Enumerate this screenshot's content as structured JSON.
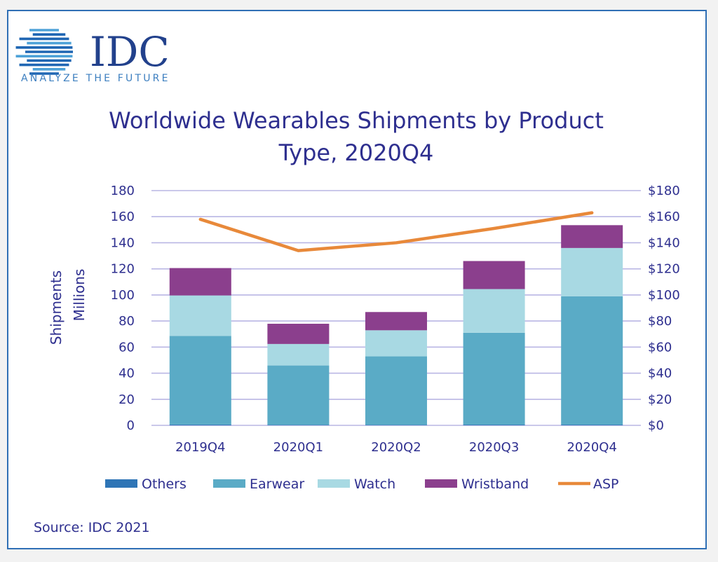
{
  "logo": {
    "name": "IDC",
    "tagline": "ANALYZE THE FUTURE"
  },
  "source": "Source: IDC 2021",
  "chart_data": {
    "type": "bar",
    "stacked": true,
    "title": [
      "Worldwide Wearables Shipments by Product",
      "Type, 2020Q4"
    ],
    "ylabel": [
      "Shipments",
      "Millions"
    ],
    "categories": [
      "2019Q4",
      "2020Q1",
      "2020Q2",
      "2020Q3",
      "2020Q4"
    ],
    "ylim": [
      0,
      180
    ],
    "yticks": [
      "0",
      "20",
      "40",
      "60",
      "80",
      "100",
      "120",
      "140",
      "160",
      "180"
    ],
    "y2lim": [
      0,
      180
    ],
    "y2ticks": [
      "$0",
      "$20",
      "$40",
      "$60",
      "$80",
      "$100",
      "$120",
      "$140",
      "$160",
      "$180"
    ],
    "grid": true,
    "legend_position": "bottom",
    "series": [
      {
        "name": "Others",
        "color": "#2e75b6",
        "values": [
          0.6,
          0.4,
          0.4,
          0.5,
          0.5
        ]
      },
      {
        "name": "Earwear",
        "color": "#5aabc6",
        "values": [
          68,
          45.5,
          52.5,
          70.5,
          98.5
        ]
      },
      {
        "name": "Watch",
        "color": "#a8d9e3",
        "values": [
          31,
          16.5,
          20,
          33.5,
          37
        ]
      },
      {
        "name": "Wristband",
        "color": "#8b3f8d",
        "values": [
          21,
          15.5,
          14,
          21.5,
          17.5
        ]
      }
    ],
    "line_series": {
      "name": "ASP",
      "color": "#e8893a",
      "axis": "right",
      "values": [
        158,
        134,
        140,
        151,
        163
      ]
    }
  }
}
